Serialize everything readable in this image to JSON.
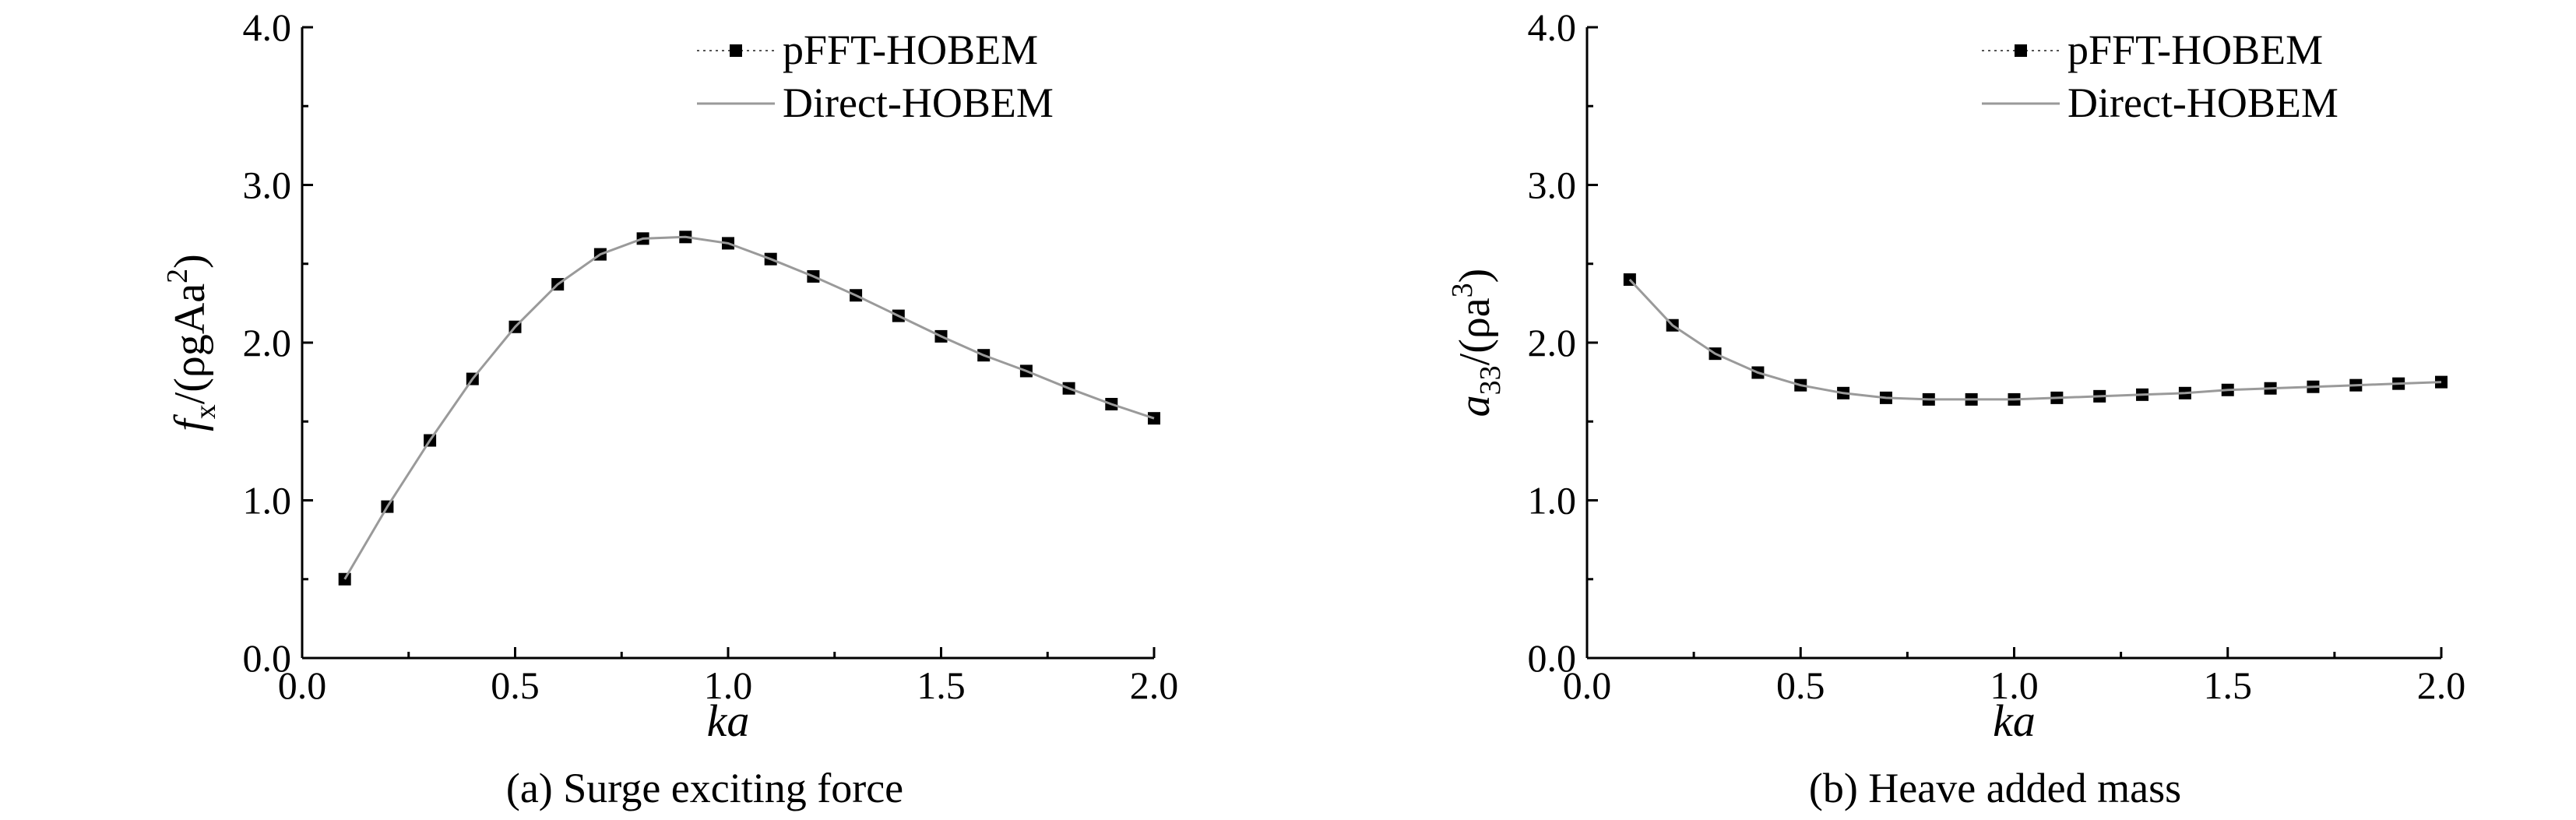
{
  "chart_data": [
    {
      "type": "line",
      "caption": "(a) Surge exciting force",
      "xlabel": "ka",
      "ylabel": "f_x/(ρgAa²)",
      "ylabel_parts": {
        "sym": "f",
        "sub": "x",
        "mid": "/(ρgAa",
        "sup": "2",
        "end": ")"
      },
      "xlim": [
        0.0,
        2.0
      ],
      "ylim": [
        0.0,
        4.0
      ],
      "xticks": [
        "0.0",
        "0.5",
        "1.0",
        "1.5",
        "2.0"
      ],
      "yticks": [
        "0.0",
        "1.0",
        "2.0",
        "3.0",
        "4.0"
      ],
      "legend_position": "top-right",
      "series": [
        {
          "name": "pFFT-HOBEM",
          "style": "markers",
          "x": [
            0.1,
            0.2,
            0.3,
            0.4,
            0.5,
            0.6,
            0.7,
            0.8,
            0.9,
            1.0,
            1.1,
            1.2,
            1.3,
            1.4,
            1.5,
            1.6,
            1.7,
            1.8,
            1.9,
            2.0
          ],
          "y": [
            0.5,
            0.96,
            1.38,
            1.77,
            2.1,
            2.37,
            2.56,
            2.66,
            2.67,
            2.63,
            2.53,
            2.42,
            2.3,
            2.17,
            2.04,
            1.92,
            1.82,
            1.71,
            1.61,
            1.52
          ]
        },
        {
          "name": "Direct-HOBEM",
          "style": "line",
          "x": [
            0.1,
            0.2,
            0.3,
            0.4,
            0.5,
            0.6,
            0.7,
            0.8,
            0.9,
            1.0,
            1.1,
            1.2,
            1.3,
            1.4,
            1.5,
            1.6,
            1.7,
            1.8,
            1.9,
            2.0
          ],
          "y": [
            0.5,
            0.96,
            1.38,
            1.77,
            2.1,
            2.37,
            2.56,
            2.66,
            2.67,
            2.63,
            2.53,
            2.42,
            2.3,
            2.17,
            2.04,
            1.92,
            1.82,
            1.71,
            1.61,
            1.52
          ]
        }
      ]
    },
    {
      "type": "line",
      "caption": "(b) Heave added mass",
      "xlabel": "ka",
      "ylabel": "a_33/(ρa³)",
      "ylabel_parts": {
        "sym": "a",
        "sub": "33",
        "mid": "/(ρa",
        "sup": "3",
        "end": ")"
      },
      "xlim": [
        0.0,
        2.0
      ],
      "ylim": [
        0.0,
        4.0
      ],
      "xticks": [
        "0.0",
        "0.5",
        "1.0",
        "1.5",
        "2.0"
      ],
      "yticks": [
        "0.0",
        "1.0",
        "2.0",
        "3.0",
        "4.0"
      ],
      "legend_position": "top-right",
      "series": [
        {
          "name": "pFFT-HOBEM",
          "style": "markers",
          "x": [
            0.1,
            0.2,
            0.3,
            0.4,
            0.5,
            0.6,
            0.7,
            0.8,
            0.9,
            1.0,
            1.1,
            1.2,
            1.3,
            1.4,
            1.5,
            1.6,
            1.7,
            1.8,
            1.9,
            2.0
          ],
          "y": [
            2.4,
            2.11,
            1.93,
            1.81,
            1.73,
            1.68,
            1.65,
            1.64,
            1.64,
            1.64,
            1.65,
            1.66,
            1.67,
            1.68,
            1.7,
            1.71,
            1.72,
            1.73,
            1.74,
            1.75
          ]
        },
        {
          "name": "Direct-HOBEM",
          "style": "line",
          "x": [
            0.1,
            0.2,
            0.3,
            0.4,
            0.5,
            0.6,
            0.7,
            0.8,
            0.9,
            1.0,
            1.1,
            1.2,
            1.3,
            1.4,
            1.5,
            1.6,
            1.7,
            1.8,
            1.9,
            2.0
          ],
          "y": [
            2.4,
            2.11,
            1.93,
            1.81,
            1.73,
            1.68,
            1.65,
            1.64,
            1.64,
            1.64,
            1.65,
            1.66,
            1.67,
            1.68,
            1.7,
            1.71,
            1.72,
            1.73,
            1.74,
            1.75
          ]
        }
      ]
    }
  ]
}
